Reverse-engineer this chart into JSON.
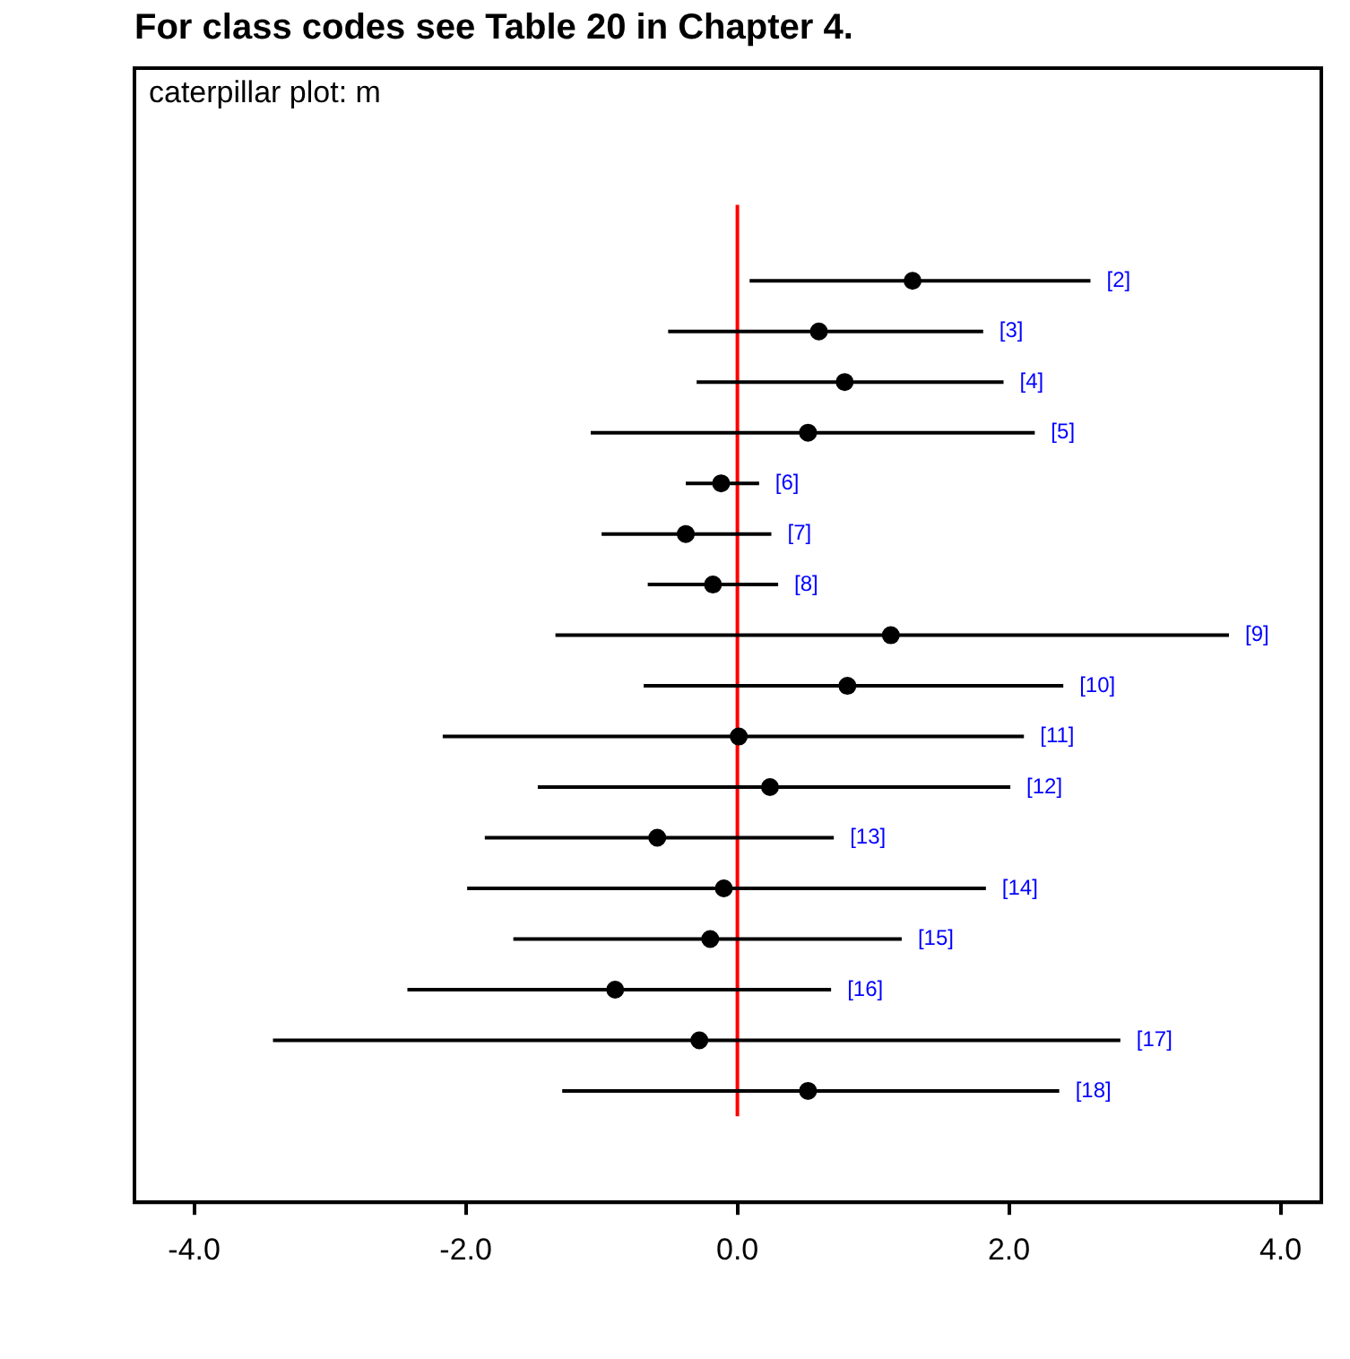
{
  "chart_data": {
    "type": "scatter",
    "orientation": "horizontal",
    "title": "For class codes see Table 20 in Chapter 4.",
    "subtitle": "caterpillar plot: m",
    "categories": [
      "[2]",
      "[3]",
      "[4]",
      "[5]",
      "[6]",
      "[7]",
      "[8]",
      "[9]",
      "[10]",
      "[11]",
      "[12]",
      "[13]",
      "[14]",
      "[15]",
      "[16]",
      "[17]",
      "[18]"
    ],
    "series": [
      {
        "color": "#000000",
        "values": [
          1.29,
          0.6,
          0.79,
          0.52,
          -0.12,
          -0.38,
          -0.18,
          1.13,
          0.81,
          0.01,
          0.24,
          -0.59,
          -0.1,
          -0.2,
          -0.9,
          -0.28,
          0.52
        ],
        "errors": [
          [
            0.09,
            2.6
          ],
          [
            -0.51,
            1.81
          ],
          [
            -0.3,
            1.96
          ],
          [
            -1.08,
            2.19
          ],
          [
            -0.38,
            0.16
          ],
          [
            -1.0,
            0.25
          ],
          [
            -0.66,
            0.3
          ],
          [
            -1.34,
            3.62
          ],
          [
            -0.69,
            2.4
          ],
          [
            -2.17,
            2.11
          ],
          [
            -1.47,
            2.01
          ],
          [
            -1.86,
            0.71
          ],
          [
            -1.99,
            1.83
          ],
          [
            -1.65,
            1.21
          ],
          [
            -2.43,
            0.69
          ],
          [
            -3.42,
            2.82
          ],
          [
            -1.29,
            2.37
          ]
        ]
      }
    ],
    "xlim": [
      -4.44,
      4.3
    ],
    "xticks": [
      {
        "value": -4,
        "label": "-4.0"
      },
      {
        "value": -2,
        "label": "-2.0"
      },
      {
        "value": 0,
        "label": "0.0"
      },
      {
        "value": 2,
        "label": "2.0"
      },
      {
        "value": 4,
        "label": "4.0"
      }
    ],
    "ref_lines": [
      {
        "axis": "x",
        "value": 0,
        "color": "#ff0000"
      }
    ],
    "grid": false,
    "legend": false,
    "tick_labels": "x",
    "marker": "circle"
  }
}
